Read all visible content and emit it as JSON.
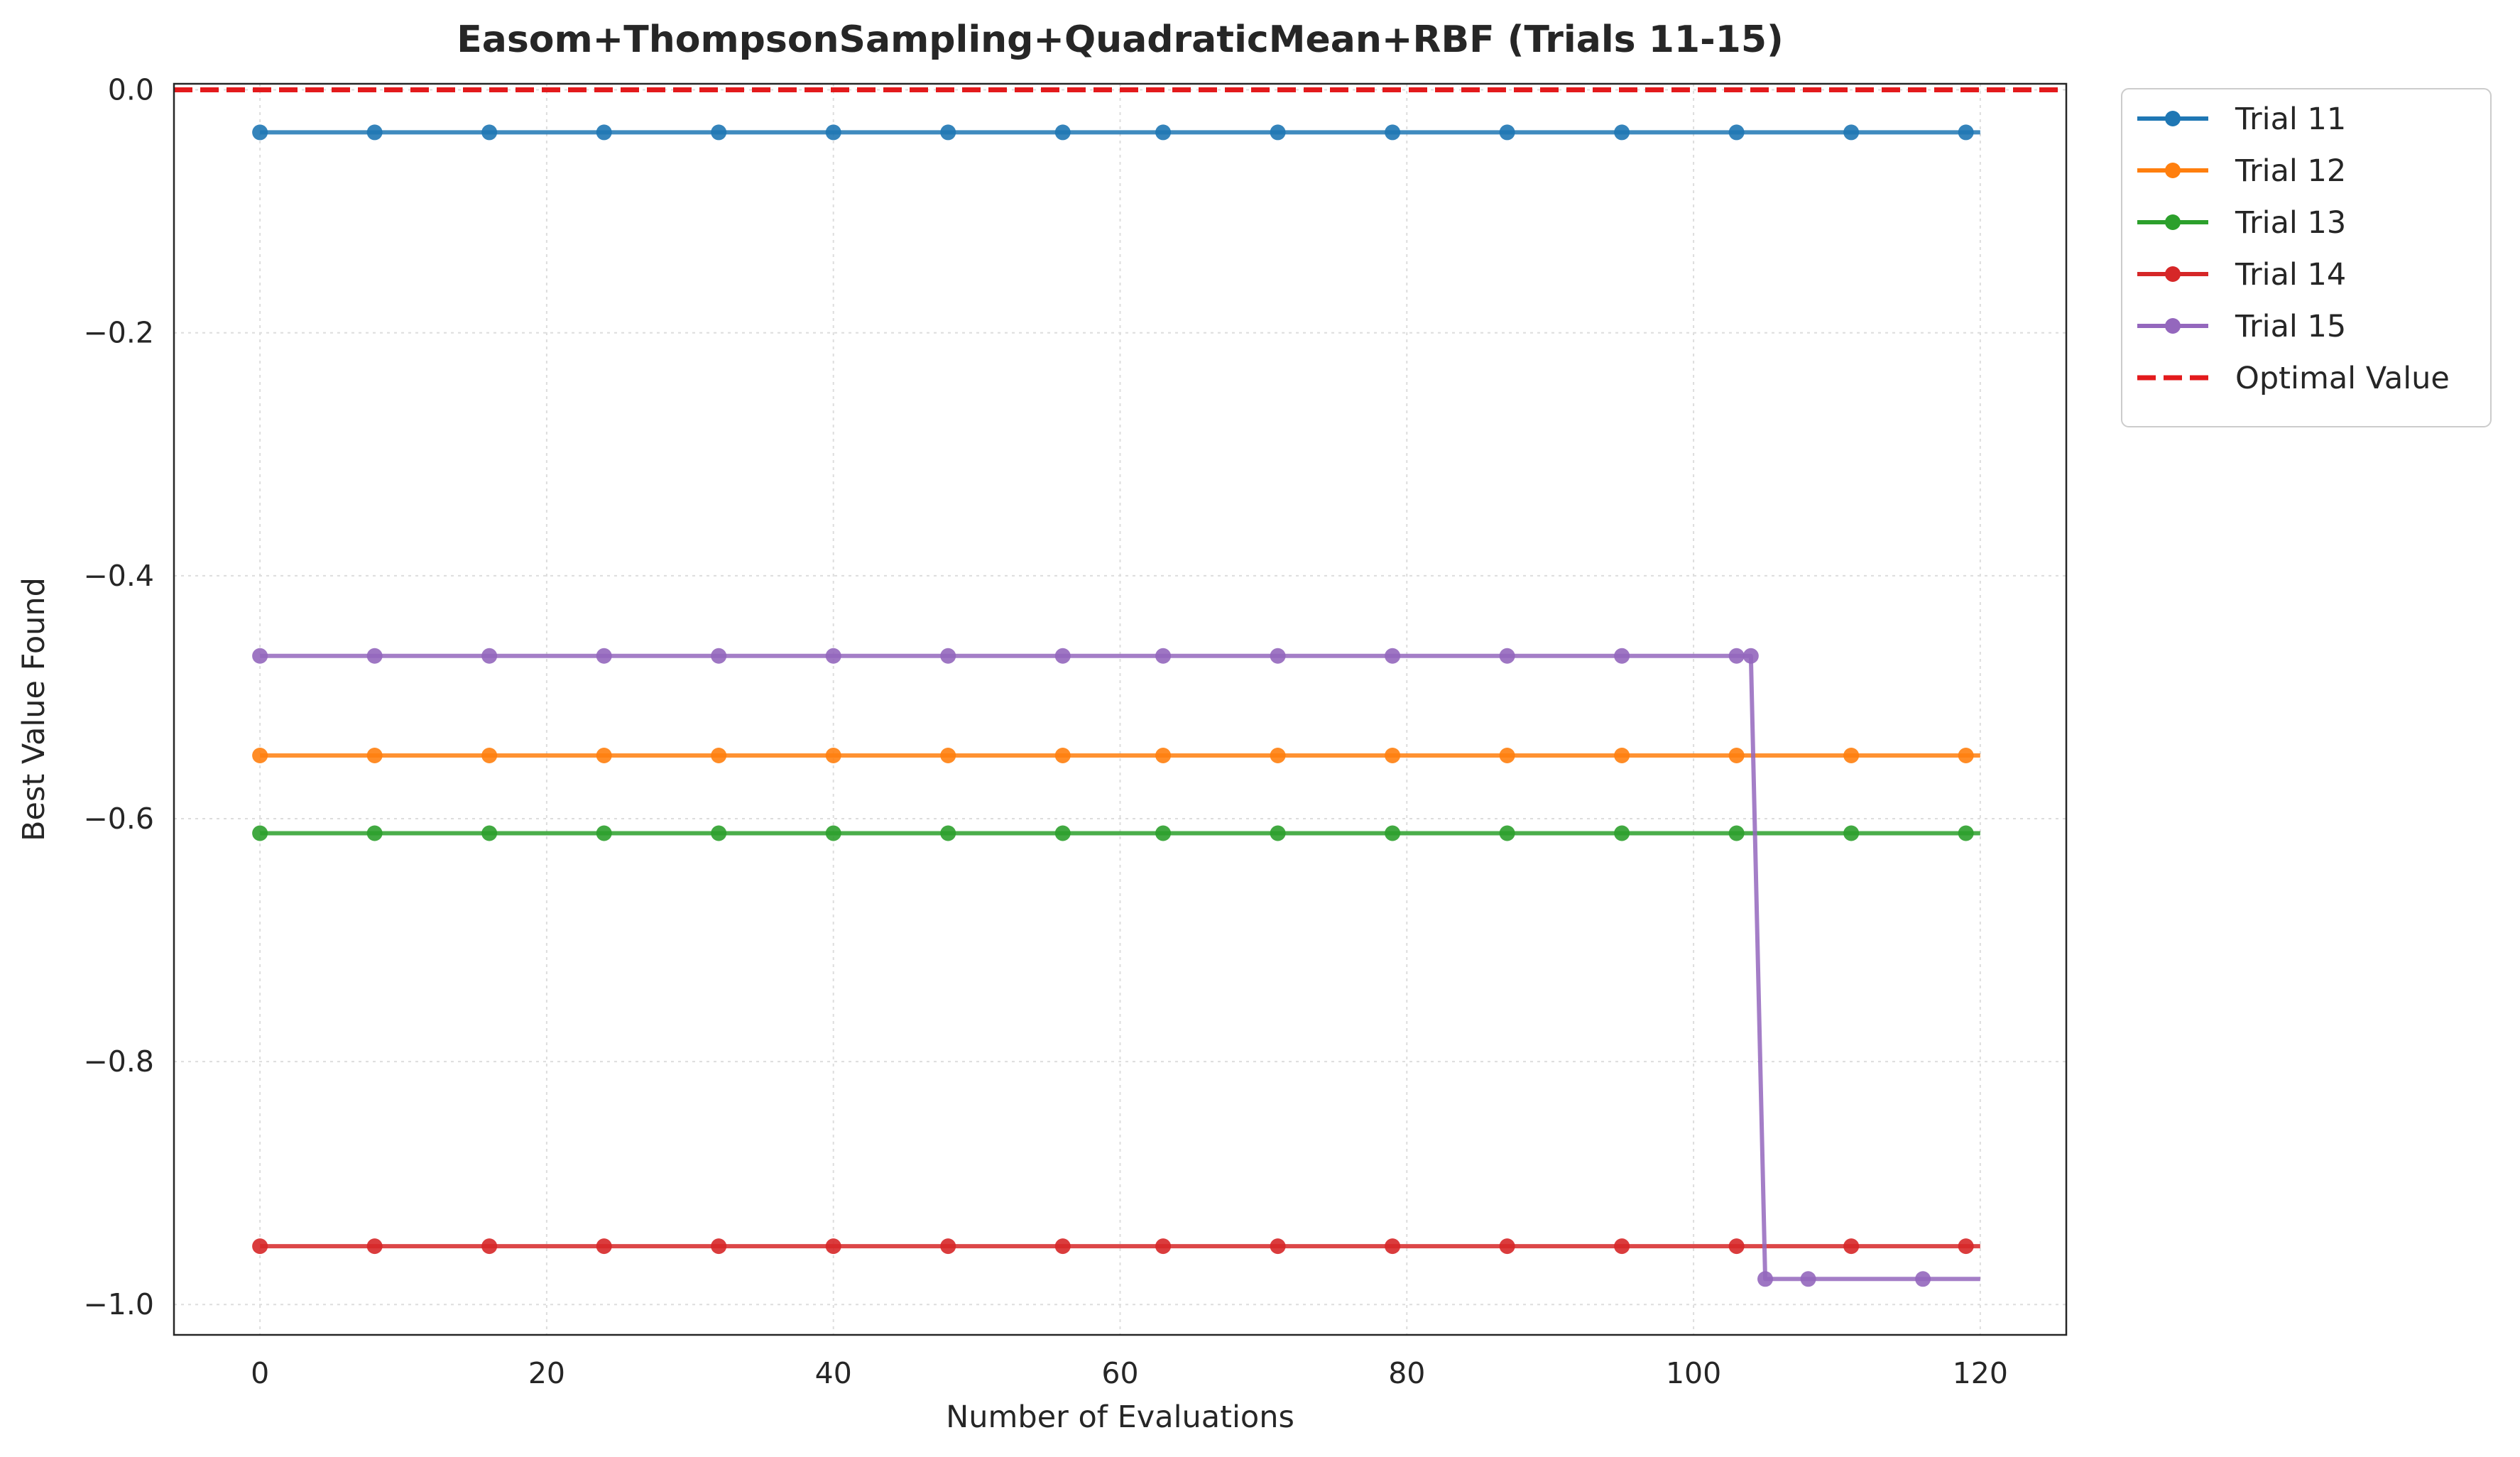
{
  "chart_data": {
    "type": "line",
    "title": "Easom+ThompsonSampling+QuadraticMean+RBF (Trials 11-15)",
    "xlabel": "Number of Evaluations",
    "ylabel": "Best Value Found",
    "xlim": [
      -6,
      126
    ],
    "ylim": [
      -1.025,
      0.005
    ],
    "xticks": [
      0,
      20,
      40,
      60,
      80,
      100,
      120
    ],
    "xtick_labels": [
      "0",
      "20",
      "40",
      "60",
      "80",
      "100",
      "120"
    ],
    "yticks": [
      0.0,
      -0.2,
      -0.4,
      -0.6,
      -0.8,
      -1.0
    ],
    "ytick_labels": [
      "0.0",
      "−0.2",
      "−0.4",
      "−0.6",
      "−0.8",
      "−1.0"
    ],
    "grid": true,
    "legend_position": "outside-top-right",
    "series": [
      {
        "name": "Trial 11",
        "color": "#1f77b4",
        "x": [
          0,
          120
        ],
        "y": [
          -0.035,
          -0.035
        ],
        "markers_x": [
          0,
          8,
          16,
          24,
          32,
          40,
          48,
          56,
          63,
          71,
          79,
          87,
          95,
          103,
          111,
          119
        ]
      },
      {
        "name": "Trial 12",
        "color": "#ff7f0e",
        "x": [
          0,
          120
        ],
        "y": [
          -0.548,
          -0.548
        ],
        "markers_x": [
          0,
          8,
          16,
          24,
          32,
          40,
          48,
          56,
          63,
          71,
          79,
          87,
          95,
          103,
          111,
          119
        ]
      },
      {
        "name": "Trial 13",
        "color": "#2ca02c",
        "x": [
          0,
          120
        ],
        "y": [
          -0.612,
          -0.612
        ],
        "markers_x": [
          0,
          8,
          16,
          24,
          32,
          40,
          48,
          56,
          63,
          71,
          79,
          87,
          95,
          103,
          111,
          119
        ]
      },
      {
        "name": "Trial 14",
        "color": "#d62728",
        "x": [
          0,
          120
        ],
        "y": [
          -0.952,
          -0.952
        ],
        "markers_x": [
          0,
          8,
          16,
          24,
          32,
          40,
          48,
          56,
          63,
          71,
          79,
          87,
          95,
          103,
          111,
          119
        ]
      },
      {
        "name": "Trial 15",
        "color": "#9467bd",
        "x": [
          0,
          104,
          105,
          120
        ],
        "y": [
          -0.466,
          -0.466,
          -0.979,
          -0.979
        ],
        "markers_x": [
          0,
          8,
          16,
          24,
          32,
          40,
          48,
          56,
          63,
          71,
          79,
          87,
          95,
          103,
          104,
          105,
          108,
          116
        ]
      }
    ],
    "reference_line": {
      "name": "Optimal Value",
      "y": 0.0,
      "color": "#e31a1c",
      "style": "dashed"
    }
  }
}
